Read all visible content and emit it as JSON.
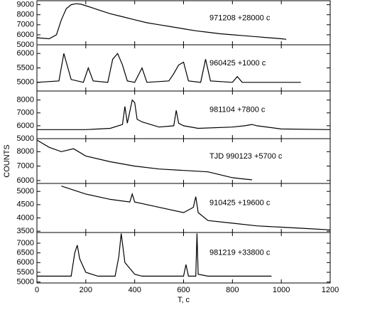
{
  "chart_data": [
    {
      "type": "line",
      "label": "971208 +28000 c",
      "xlim": [
        0,
        1200
      ],
      "ylim": [
        5000,
        9400
      ],
      "yticks": [
        5000,
        6000,
        7000,
        8000,
        9000
      ],
      "series": [
        {
          "color": "#000000",
          "x": [
            0,
            50,
            80,
            100,
            120,
            140,
            160,
            180,
            200,
            250,
            300,
            350,
            400,
            450,
            500,
            550,
            600,
            650,
            700,
            750,
            800,
            850,
            900,
            950,
            1000,
            1020
          ],
          "values": [
            5700,
            5600,
            6000,
            7500,
            8600,
            9000,
            9100,
            9050,
            8900,
            8500,
            8100,
            7800,
            7500,
            7200,
            7000,
            6800,
            6600,
            6400,
            6250,
            6100,
            6000,
            5900,
            5800,
            5700,
            5600,
            5550
          ]
        }
      ]
    },
    {
      "type": "line",
      "label": "960425 +1000 c",
      "xlim": [
        0,
        1200
      ],
      "ylim": [
        4700,
        6300
      ],
      "yticks": [
        5000,
        5500,
        6000
      ],
      "series": [
        {
          "color": "#000000",
          "x": [
            0,
            90,
            110,
            120,
            140,
            190,
            210,
            230,
            290,
            310,
            330,
            350,
            370,
            400,
            430,
            450,
            540,
            560,
            580,
            600,
            620,
            670,
            690,
            710,
            800,
            820,
            840,
            1080
          ],
          "values": [
            5000,
            5050,
            6000,
            5700,
            5100,
            5000,
            5500,
            5050,
            5000,
            5800,
            6000,
            5600,
            5050,
            5000,
            5500,
            5000,
            5050,
            5300,
            5600,
            5700,
            5050,
            5000,
            5800,
            5050,
            5000,
            5200,
            5000,
            5000
          ]
        }
      ]
    },
    {
      "type": "line",
      "label": "981104 +7800 c",
      "xlim": [
        0,
        1200
      ],
      "ylim": [
        5000,
        8700
      ],
      "yticks": [
        5000,
        6000,
        7000,
        8000
      ],
      "series": [
        {
          "color": "#000000",
          "x": [
            0,
            200,
            300,
            350,
            360,
            370,
            390,
            400,
            410,
            430,
            500,
            560,
            570,
            580,
            600,
            660,
            800,
            850,
            880,
            900,
            1000,
            1200
          ],
          "values": [
            5700,
            5700,
            5800,
            6100,
            7500,
            6200,
            8000,
            7800,
            6500,
            6300,
            5900,
            6000,
            7200,
            6200,
            6000,
            5800,
            5900,
            6000,
            6100,
            6000,
            5750,
            5700
          ]
        }
      ]
    },
    {
      "type": "line",
      "label": "TJD 990123 +5700 c",
      "ylabel": "COUNTS",
      "xlim": [
        0,
        1200
      ],
      "ylim": [
        5800,
        8900
      ],
      "yticks": [
        6000,
        7000,
        8000
      ],
      "series": [
        {
          "color": "#000000",
          "x": [
            0,
            50,
            100,
            150,
            200,
            300,
            400,
            500,
            600,
            700,
            750,
            800,
            850,
            880
          ],
          "values": [
            8800,
            8300,
            8000,
            8200,
            7700,
            7300,
            7000,
            6800,
            6700,
            6600,
            6400,
            6200,
            6100,
            6050
          ]
        }
      ]
    },
    {
      "type": "line",
      "label": "910425 +19600 c",
      "xlim": [
        0,
        1200
      ],
      "ylim": [
        3450,
        5300
      ],
      "yticks": [
        3500,
        4000,
        4500,
        5000
      ],
      "series": [
        {
          "color": "#000000",
          "x": [
            100,
            200,
            300,
            380,
            390,
            400,
            500,
            600,
            640,
            650,
            660,
            700,
            800,
            900,
            1000,
            1100,
            1200
          ],
          "values": [
            5200,
            4900,
            4700,
            4600,
            4900,
            4600,
            4400,
            4200,
            4400,
            4800,
            4200,
            3900,
            3800,
            3700,
            3650,
            3600,
            3550
          ]
        }
      ]
    },
    {
      "type": "line",
      "label": "981219 +33800 c",
      "xlabel": "T, c",
      "xlim": [
        0,
        1200
      ],
      "ylim": [
        4950,
        7550
      ],
      "yticks": [
        5000,
        5500,
        6000,
        6500,
        7000
      ],
      "xticks": [
        0,
        200,
        400,
        600,
        800,
        1000,
        1200
      ],
      "series": [
        {
          "color": "#000000",
          "x": [
            0,
            140,
            155,
            165,
            175,
            200,
            250,
            320,
            335,
            345,
            360,
            400,
            430,
            600,
            610,
            620,
            650,
            655,
            660,
            700,
            960
          ],
          "values": [
            5300,
            5300,
            6500,
            6900,
            6200,
            5500,
            5300,
            5300,
            6300,
            7500,
            6000,
            5400,
            5300,
            5300,
            5900,
            5300,
            5300,
            7500,
            5400,
            5300,
            5300
          ]
        }
      ]
    }
  ]
}
